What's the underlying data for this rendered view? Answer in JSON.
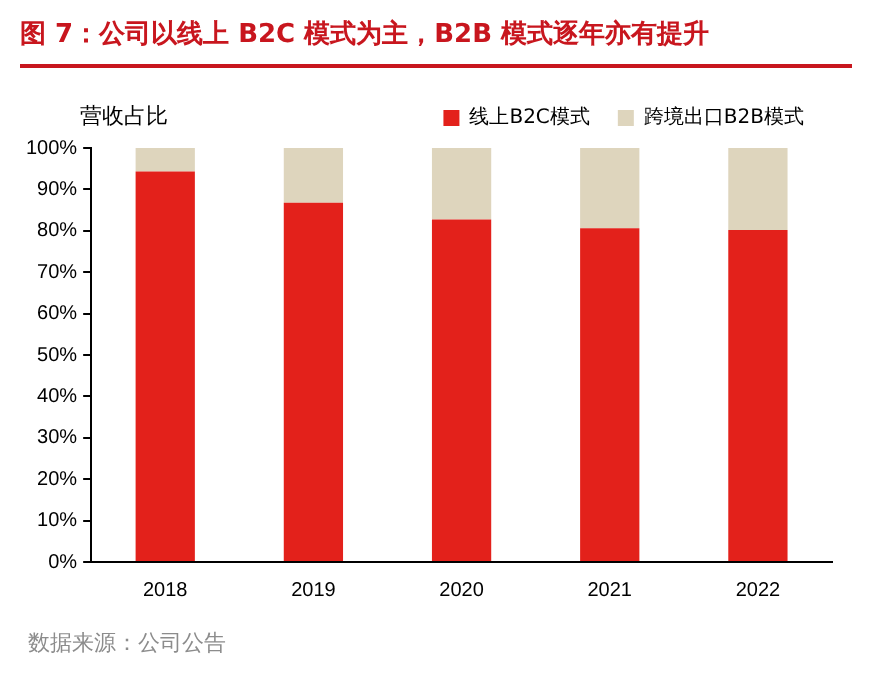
{
  "chart_data": {
    "type": "bar",
    "title": "图 7：公司以线上 B2C 模式为主，B2B 模式逐年亦有提升",
    "ylabel": "营收占比",
    "categories": [
      "2018",
      "2019",
      "2020",
      "2021",
      "2022"
    ],
    "stacked": true,
    "series": [
      {
        "name": "线上B2C模式",
        "color": "#e3211b",
        "values": [
          94.3,
          86.8,
          82.7,
          80.6,
          80.2
        ]
      },
      {
        "name": "跨境出口B2B模式",
        "color": "#ded5bd",
        "values": [
          5.7,
          13.2,
          17.3,
          19.4,
          19.8
        ]
      }
    ],
    "ylim": [
      0,
      100
    ],
    "yticks": [
      {
        "value": 0,
        "label": "0%"
      },
      {
        "value": 10,
        "label": "10%"
      },
      {
        "value": 20,
        "label": "20%"
      },
      {
        "value": 30,
        "label": "30%"
      },
      {
        "value": 40,
        "label": "40%"
      },
      {
        "value": 50,
        "label": "50%"
      },
      {
        "value": 60,
        "label": "60%"
      },
      {
        "value": 70,
        "label": "70%"
      },
      {
        "value": 80,
        "label": "80%"
      },
      {
        "value": 90,
        "label": "90%"
      },
      {
        "value": 100,
        "label": "100%"
      }
    ],
    "grid": false,
    "legend": "top",
    "annotations": [
      "数据来源：公司公告"
    ]
  }
}
